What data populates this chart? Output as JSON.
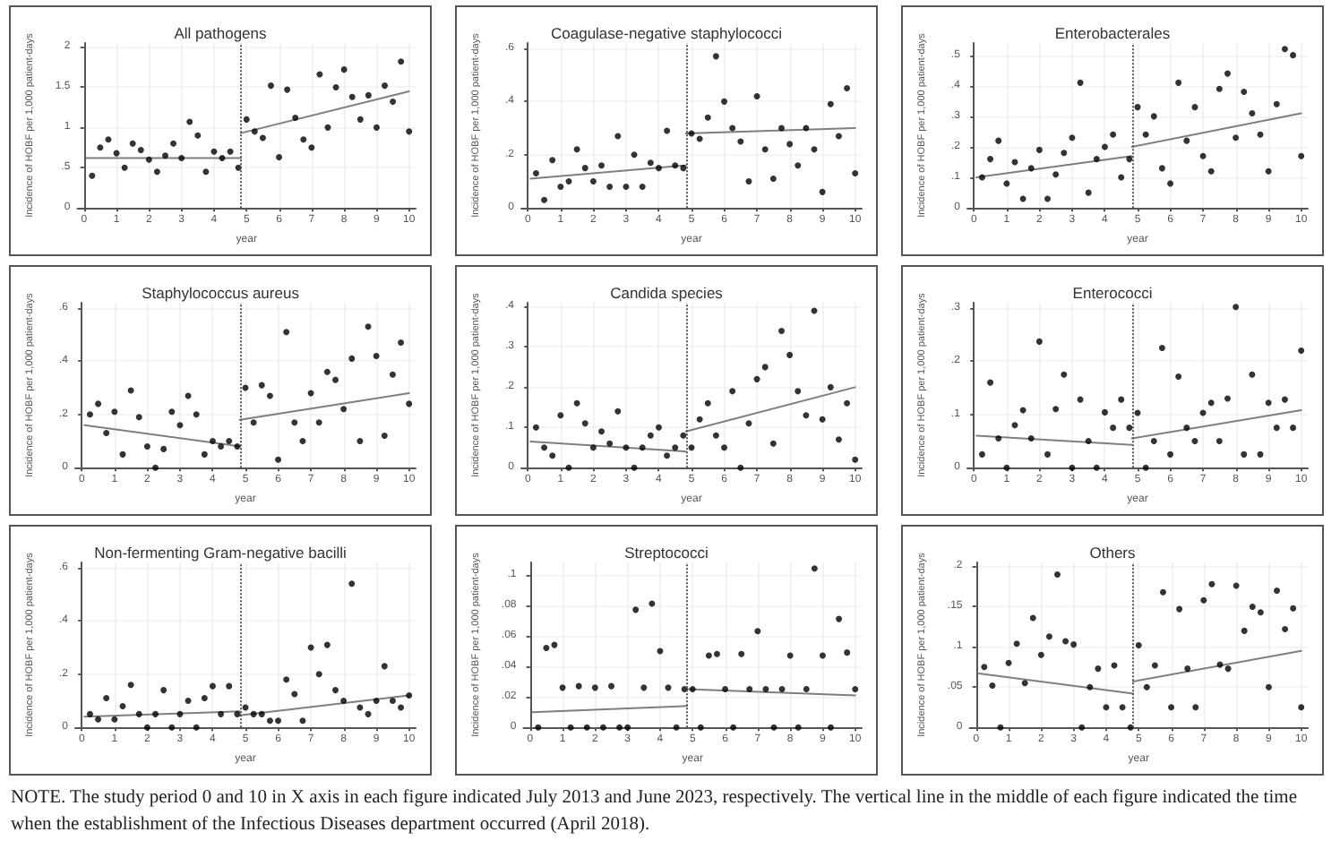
{
  "chart_data": [
    {
      "type": "scatter",
      "title": "All pathogens",
      "xlabel": "year",
      "ylabel": "Incidence of HOBF per 1,000 patient-days",
      "xlim": [
        -0.2,
        10.2
      ],
      "xticks": [
        0,
        1,
        2,
        3,
        4,
        5,
        6,
        7,
        8,
        9,
        10
      ],
      "ylim": [
        0,
        2.05
      ],
      "yticks": [
        0,
        {
          "value": 0.5,
          "label": ".5"
        },
        1,
        1.5,
        2
      ],
      "grid": true,
      "x": [
        0.25,
        0.5,
        0.75,
        1,
        1.25,
        1.5,
        1.75,
        2,
        2.25,
        2.5,
        2.75,
        3,
        3.25,
        3.5,
        3.75,
        4,
        4.25,
        4.5,
        4.75,
        5,
        5.25,
        5.5,
        5.75,
        6,
        6.25,
        6.5,
        6.75,
        7,
        7.25,
        7.5,
        7.75,
        8,
        8.25,
        8.5,
        8.75,
        9,
        9.25,
        9.5,
        9.75,
        10
      ],
      "series": [
        {
          "color": "#000000",
          "marker": "circle",
          "values": [
            0.4,
            0.75,
            0.85,
            0.68,
            0.5,
            0.8,
            0.72,
            0.6,
            0.45,
            0.65,
            0.8,
            0.62,
            1.07,
            0.9,
            0.45,
            0.7,
            0.62,
            0.7,
            0.5,
            1.1,
            0.95,
            0.87,
            1.52,
            0.63,
            1.47,
            1.12,
            0.85,
            0.75,
            1.66,
            1.0,
            1.5,
            1.72,
            1.38,
            1.1,
            1.4,
            1.0,
            1.52,
            1.32,
            1.82,
            0.95
          ]
        },
        {
          "type": "line",
          "color": "#7f7f7f",
          "x": [
            0.08,
            4.83
          ],
          "values": [
            0.62,
            0.62
          ]
        },
        {
          "type": "line",
          "color": "#7f7f7f",
          "x": [
            4.83,
            10
          ],
          "values": [
            0.93,
            1.45
          ]
        }
      ],
      "ref_lines": [
        {
          "axis": "x",
          "value": 4.83,
          "color": "#555555",
          "line_style": "dotted"
        }
      ],
      "annotations": [
        "NOTE. The study period 0 and 10 in X axis in each figure indicated July 2013 and June 2023, respectively. The vertical line in the middle of each figure indicated the time when the establishment of the Infectious Diseases department occurred (April 2018)."
      ]
    },
    {
      "type": "scatter",
      "title": "Coagulase-negative staphylococci",
      "xlabel": "year",
      "ylabel": "Incidence of HOBF per 1,000 patient-days",
      "xlim": [
        -0.2,
        10.2
      ],
      "xticks": [
        0,
        1,
        2,
        3,
        4,
        5,
        6,
        7,
        8,
        9,
        10
      ],
      "ylim": [
        0,
        0.62
      ],
      "yticks": [
        0,
        {
          "value": 0.2,
          "label": ".2"
        },
        {
          "value": 0.4,
          "label": ".4"
        },
        {
          "value": 0.6,
          "label": ".6"
        }
      ],
      "grid": true,
      "x": [
        0.25,
        0.5,
        0.75,
        1,
        1.25,
        1.5,
        1.75,
        2,
        2.25,
        2.5,
        2.75,
        3,
        3.25,
        3.5,
        3.75,
        4,
        4.25,
        4.5,
        4.75,
        5,
        5.25,
        5.5,
        5.75,
        6,
        6.25,
        6.5,
        6.75,
        7,
        7.25,
        7.5,
        7.75,
        8,
        8.25,
        8.5,
        8.75,
        9,
        9.25,
        9.5,
        9.75,
        10
      ],
      "series": [
        {
          "color": "#000000",
          "marker": "circle",
          "values": [
            0.13,
            0.03,
            0.18,
            0.08,
            0.1,
            0.22,
            0.15,
            0.1,
            0.16,
            0.08,
            0.27,
            0.08,
            0.2,
            0.08,
            0.17,
            0.15,
            0.29,
            0.16,
            0.15,
            0.28,
            0.26,
            0.34,
            0.57,
            0.4,
            0.3,
            0.25,
            0.1,
            0.42,
            0.22,
            0.11,
            0.3,
            0.24,
            0.16,
            0.3,
            0.22,
            0.06,
            0.39,
            0.27,
            0.45,
            0.13
          ]
        },
        {
          "type": "line",
          "color": "#7f7f7f",
          "x": [
            0.08,
            4.83
          ],
          "values": [
            0.11,
            0.16
          ]
        },
        {
          "type": "line",
          "color": "#7f7f7f",
          "x": [
            4.83,
            10
          ],
          "values": [
            0.28,
            0.3
          ]
        }
      ],
      "ref_lines": [
        {
          "axis": "x",
          "value": 4.83,
          "color": "#555555",
          "line_style": "dotted"
        }
      ]
    },
    {
      "type": "scatter",
      "title": "Enterobacterales",
      "xlabel": "year",
      "ylabel": "Incidence of HOBF per 1,000 patient-days",
      "xlim": [
        -0.2,
        10.2
      ],
      "xticks": [
        0,
        1,
        2,
        3,
        4,
        5,
        6,
        7,
        8,
        9,
        10
      ],
      "ylim": [
        0,
        0.54
      ],
      "yticks": [
        0,
        {
          "value": 0.1,
          "label": ".1"
        },
        {
          "value": 0.2,
          "label": ".2"
        },
        {
          "value": 0.3,
          "label": ".3"
        },
        {
          "value": 0.4,
          "label": ".4"
        },
        {
          "value": 0.5,
          "label": ".5"
        }
      ],
      "grid": true,
      "x": [
        0.25,
        0.5,
        0.75,
        1,
        1.25,
        1.5,
        1.75,
        2,
        2.25,
        2.5,
        2.75,
        3,
        3.25,
        3.5,
        3.75,
        4,
        4.25,
        4.5,
        4.75,
        5,
        5.25,
        5.5,
        5.75,
        6,
        6.25,
        6.5,
        6.75,
        7,
        7.25,
        7.5,
        7.75,
        8,
        8.25,
        8.5,
        8.75,
        9,
        9.25,
        9.5,
        9.75,
        10
      ],
      "series": [
        {
          "color": "#000000",
          "marker": "circle",
          "values": [
            0.1,
            0.16,
            0.22,
            0.08,
            0.15,
            0.03,
            0.13,
            0.19,
            0.03,
            0.11,
            0.18,
            0.23,
            0.41,
            0.05,
            0.16,
            0.2,
            0.24,
            0.1,
            0.16,
            0.33,
            0.24,
            0.3,
            0.13,
            0.08,
            0.41,
            0.22,
            0.33,
            0.17,
            0.12,
            0.39,
            0.44,
            0.23,
            0.38,
            0.31,
            0.24,
            0.12,
            0.34,
            0.52,
            0.5,
            0.17
          ]
        },
        {
          "type": "line",
          "color": "#7f7f7f",
          "x": [
            0.08,
            4.83
          ],
          "values": [
            0.1,
            0.17
          ]
        },
        {
          "type": "line",
          "color": "#7f7f7f",
          "x": [
            4.83,
            10
          ],
          "values": [
            0.2,
            0.31
          ]
        }
      ],
      "ref_lines": [
        {
          "axis": "x",
          "value": 4.83,
          "color": "#555555",
          "line_style": "dotted"
        }
      ]
    },
    {
      "type": "scatter",
      "title": "Staphylococcus aureus",
      "xlabel": "year",
      "ylabel": "Incidence of HOBF per 1,000 patient-days",
      "xlim": [
        -0.2,
        10.2
      ],
      "xticks": [
        0,
        1,
        2,
        3,
        4,
        5,
        6,
        7,
        8,
        9,
        10
      ],
      "ylim": [
        0,
        0.62
      ],
      "yticks": [
        0,
        {
          "value": 0.2,
          "label": ".2"
        },
        {
          "value": 0.4,
          "label": ".4"
        },
        {
          "value": 0.6,
          "label": ".6"
        }
      ],
      "grid": true,
      "x": [
        0.25,
        0.5,
        0.75,
        1,
        1.25,
        1.5,
        1.75,
        2,
        2.25,
        2.5,
        2.75,
        3,
        3.25,
        3.5,
        3.75,
        4,
        4.25,
        4.5,
        4.75,
        5,
        5.25,
        5.5,
        5.75,
        6,
        6.25,
        6.5,
        6.75,
        7,
        7.25,
        7.5,
        7.75,
        8,
        8.25,
        8.5,
        8.75,
        9,
        9.25,
        9.5,
        9.75,
        10
      ],
      "series": [
        {
          "color": "#000000",
          "marker": "circle",
          "values": [
            0.2,
            0.24,
            0.13,
            0.21,
            0.05,
            0.29,
            0.19,
            0.08,
            0,
            0.07,
            0.21,
            0.16,
            0.27,
            0.2,
            0.05,
            0.1,
            0.08,
            0.1,
            0.08,
            0.3,
            0.17,
            0.31,
            0.27,
            0.03,
            0.51,
            0.17,
            0.1,
            0.28,
            0.17,
            0.36,
            0.33,
            0.22,
            0.41,
            0.1,
            0.53,
            0.42,
            0.12,
            0.35,
            0.47,
            0.24
          ]
        },
        {
          "type": "line",
          "color": "#7f7f7f",
          "x": [
            0.08,
            4.83
          ],
          "values": [
            0.16,
            0.08
          ]
        },
        {
          "type": "line",
          "color": "#7f7f7f",
          "x": [
            4.83,
            10
          ],
          "values": [
            0.18,
            0.28
          ]
        }
      ],
      "ref_lines": [
        {
          "axis": "x",
          "value": 4.83,
          "color": "#555555",
          "line_style": "dotted"
        }
      ]
    },
    {
      "type": "scatter",
      "title": "Candida species",
      "xlabel": "year",
      "ylabel": "Incidence of HOBF per 1,000 patient-days",
      "xlim": [
        -0.2,
        10.2
      ],
      "xticks": [
        0,
        1,
        2,
        3,
        4,
        5,
        6,
        7,
        8,
        9,
        10
      ],
      "ylim": [
        0,
        0.41
      ],
      "yticks": [
        0,
        {
          "value": 0.1,
          "label": ".1"
        },
        {
          "value": 0.2,
          "label": ".2"
        },
        {
          "value": 0.3,
          "label": ".3"
        },
        {
          "value": 0.4,
          "label": ".4"
        }
      ],
      "grid": true,
      "x": [
        0.25,
        0.5,
        0.75,
        1,
        1.25,
        1.5,
        1.75,
        2,
        2.25,
        2.5,
        2.75,
        3,
        3.25,
        3.5,
        3.75,
        4,
        4.25,
        4.5,
        4.75,
        5,
        5.25,
        5.5,
        5.75,
        6,
        6.25,
        6.5,
        6.75,
        7,
        7.25,
        7.5,
        7.75,
        8,
        8.25,
        8.5,
        8.75,
        9,
        9.25,
        9.5,
        9.75,
        10
      ],
      "series": [
        {
          "color": "#000000",
          "marker": "circle",
          "values": [
            0.1,
            0.05,
            0.03,
            0.13,
            0,
            0.16,
            0.11,
            0.05,
            0.09,
            0.06,
            0.14,
            0.05,
            0,
            0.05,
            0.08,
            0.1,
            0.03,
            0.05,
            0.08,
            0.05,
            0.12,
            0.16,
            0.08,
            0.05,
            0.19,
            0,
            0.11,
            0.22,
            0.25,
            0.06,
            0.34,
            0.28,
            0.19,
            0.13,
            0.39,
            0.12,
            0.2,
            0.07,
            0.16,
            0.02
          ]
        },
        {
          "type": "line",
          "color": "#7f7f7f",
          "x": [
            0.08,
            4.83
          ],
          "values": [
            0.065,
            0.04
          ]
        },
        {
          "type": "line",
          "color": "#7f7f7f",
          "x": [
            4.83,
            10
          ],
          "values": [
            0.09,
            0.2
          ]
        }
      ],
      "ref_lines": [
        {
          "axis": "x",
          "value": 4.83,
          "color": "#555555",
          "line_style": "dotted"
        }
      ]
    },
    {
      "type": "scatter",
      "title": "Enterococci",
      "xlabel": "year",
      "ylabel": "Incidence of HOBF per 1,000 patient-days",
      "xlim": [
        -0.2,
        10.2
      ],
      "xticks": [
        0,
        1,
        2,
        3,
        4,
        5,
        6,
        7,
        8,
        9,
        10
      ],
      "ylim": [
        0,
        0.31
      ],
      "yticks": [
        0,
        {
          "value": 0.1,
          "label": ".1"
        },
        {
          "value": 0.2,
          "label": ".2"
        },
        {
          "value": 0.3,
          "label": ".3"
        }
      ],
      "grid": true,
      "x": [
        0.25,
        0.5,
        0.75,
        1,
        1.25,
        1.5,
        1.75,
        2,
        2.25,
        2.5,
        2.75,
        3,
        3.25,
        3.5,
        3.75,
        4,
        4.25,
        4.5,
        4.75,
        5,
        5.25,
        5.5,
        5.75,
        6,
        6.25,
        6.5,
        6.75,
        7,
        7.25,
        7.5,
        7.75,
        8,
        8.25,
        8.5,
        8.75,
        9,
        9.25,
        9.5,
        9.75,
        10
      ],
      "series": [
        {
          "color": "#000000",
          "marker": "circle",
          "values": [
            0.025,
            0.16,
            0.055,
            0,
            0.08,
            0.108,
            0.055,
            0.237,
            0.025,
            0.11,
            0.175,
            0,
            0.128,
            0.05,
            0,
            0.104,
            0.075,
            0.128,
            0.075,
            0.103,
            0,
            0.05,
            0.225,
            0.025,
            0.171,
            0.075,
            0.05,
            0.103,
            0.122,
            0.05,
            0.13,
            0.302,
            0.025,
            0.175,
            0.025,
            0.122,
            0.075,
            0.128,
            0.075,
            0.22
          ]
        },
        {
          "type": "line",
          "color": "#7f7f7f",
          "x": [
            0.08,
            4.83
          ],
          "values": [
            0.06,
            0.043
          ]
        },
        {
          "type": "line",
          "color": "#7f7f7f",
          "x": [
            4.83,
            10
          ],
          "values": [
            0.055,
            0.108
          ]
        }
      ],
      "ref_lines": [
        {
          "axis": "x",
          "value": 4.83,
          "color": "#555555",
          "line_style": "dotted"
        }
      ]
    },
    {
      "type": "scatter",
      "title": "Non-fermenting Gram-negative bacilli",
      "xlabel": "year",
      "ylabel": "Incidence of HOBF per 1,000 patient-days",
      "xlim": [
        -0.2,
        10.2
      ],
      "xticks": [
        0,
        1,
        2,
        3,
        4,
        5,
        6,
        7,
        8,
        9,
        10
      ],
      "ylim": [
        0,
        0.62
      ],
      "yticks": [
        0,
        {
          "value": 0.2,
          "label": ".2"
        },
        {
          "value": 0.4,
          "label": ".4"
        },
        {
          "value": 0.6,
          "label": ".6"
        }
      ],
      "grid": true,
      "x": [
        0.25,
        0.5,
        0.75,
        1,
        1.25,
        1.5,
        1.75,
        2,
        2.25,
        2.5,
        2.75,
        3,
        3.25,
        3.5,
        3.75,
        4,
        4.25,
        4.5,
        4.75,
        5,
        5.25,
        5.5,
        5.75,
        6,
        6.25,
        6.5,
        6.75,
        7,
        7.25,
        7.5,
        7.75,
        8,
        8.25,
        8.5,
        8.75,
        9,
        9.25,
        9.5,
        9.75,
        10
      ],
      "series": [
        {
          "color": "#000000",
          "marker": "circle",
          "values": [
            0.05,
            0.03,
            0.11,
            0.03,
            0.08,
            0.16,
            0.05,
            0,
            0.05,
            0.14,
            0,
            0.05,
            0.1,
            0,
            0.11,
            0.155,
            0.05,
            0.155,
            0.05,
            0.075,
            0.05,
            0.05,
            0.025,
            0.025,
            0.18,
            0.125,
            0.025,
            0.3,
            0.2,
            0.31,
            0.14,
            0.1,
            0.54,
            0.075,
            0.05,
            0.1,
            0.23,
            0.1,
            0.075,
            0.12
          ]
        },
        {
          "type": "line",
          "color": "#7f7f7f",
          "x": [
            0.08,
            4.83
          ],
          "values": [
            0.04,
            0.06
          ]
        },
        {
          "type": "line",
          "color": "#7f7f7f",
          "x": [
            4.83,
            10
          ],
          "values": [
            0.045,
            0.12
          ]
        }
      ],
      "ref_lines": [
        {
          "axis": "x",
          "value": 4.83,
          "color": "#555555",
          "line_style": "dotted"
        }
      ]
    },
    {
      "type": "scatter",
      "title": "Streptococci",
      "xlabel": "year",
      "ylabel": "Incidence of HOBF per 1,000 patient-days",
      "xlim": [
        -0.2,
        10.2
      ],
      "xticks": [
        0,
        1,
        2,
        3,
        4,
        5,
        6,
        7,
        8,
        9,
        10
      ],
      "ylim": [
        0,
        0.108
      ],
      "yticks": [
        0,
        {
          "value": 0.02,
          "label": ".02"
        },
        {
          "value": 0.04,
          "label": ".04"
        },
        {
          "value": 0.06,
          "label": ".06"
        },
        {
          "value": 0.08,
          "label": ".08"
        },
        {
          "value": 0.1,
          "label": ".1"
        }
      ],
      "grid": true,
      "x": [
        0.25,
        0.5,
        0.75,
        1,
        1.25,
        1.5,
        1.75,
        2,
        2.25,
        2.5,
        2.75,
        3,
        3.25,
        3.5,
        3.75,
        4,
        4.25,
        4.5,
        4.75,
        5,
        5.25,
        5.5,
        5.75,
        6,
        6.25,
        6.5,
        6.75,
        7,
        7.25,
        7.5,
        7.75,
        8,
        8.25,
        8.5,
        8.75,
        9,
        9.25,
        9.5,
        9.75,
        10
      ],
      "series": [
        {
          "color": "#000000",
          "marker": "circle",
          "values": [
            0,
            0.052,
            0.054,
            0.026,
            0,
            0.027,
            0,
            0.026,
            0,
            0.027,
            0,
            0,
            0.077,
            0.026,
            0.081,
            0.05,
            0.026,
            0,
            0.025,
            0.025,
            0,
            0.047,
            0.048,
            0.025,
            0,
            0.048,
            0.025,
            0.063,
            0.025,
            0,
            0.025,
            0.047,
            0,
            0.025,
            0.104,
            0.047,
            0,
            0.071,
            0.049,
            0.025
          ]
        },
        {
          "type": "line",
          "color": "#7f7f7f",
          "x": [
            0.08,
            4.83
          ],
          "values": [
            0.01,
            0.014
          ]
        },
        {
          "type": "line",
          "color": "#7f7f7f",
          "x": [
            4.83,
            10
          ],
          "values": [
            0.025,
            0.021
          ]
        }
      ],
      "ref_lines": [
        {
          "axis": "x",
          "value": 4.83,
          "color": "#555555",
          "line_style": "dotted"
        }
      ]
    },
    {
      "type": "scatter",
      "title": "Others",
      "xlabel": "year",
      "ylabel": "Incidence of HOBF per 1,000 patient-days",
      "xlim": [
        -0.2,
        10.2
      ],
      "xticks": [
        0,
        1,
        2,
        3,
        4,
        5,
        6,
        7,
        8,
        9,
        10
      ],
      "ylim": [
        0,
        0.205
      ],
      "yticks": [
        0,
        {
          "value": 0.05,
          "label": ".05"
        },
        {
          "value": 0.1,
          "label": ".1"
        },
        {
          "value": 0.15,
          "label": ".15"
        },
        {
          "value": 0.2,
          "label": ".2"
        }
      ],
      "grid": true,
      "x": [
        0.25,
        0.5,
        0.75,
        1,
        1.25,
        1.5,
        1.75,
        2,
        2.25,
        2.5,
        2.75,
        3,
        3.25,
        3.5,
        3.75,
        4,
        4.25,
        4.5,
        4.75,
        5,
        5.25,
        5.5,
        5.75,
        6,
        6.25,
        6.5,
        6.75,
        7,
        7.25,
        7.5,
        7.75,
        8,
        8.25,
        8.5,
        8.75,
        9,
        9.25,
        9.5,
        9.75,
        10
      ],
      "series": [
        {
          "color": "#000000",
          "marker": "circle",
          "values": [
            0.075,
            0.052,
            0,
            0.08,
            0.104,
            0.055,
            0.136,
            0.09,
            0.113,
            0.19,
            0.107,
            0.103,
            0,
            0.05,
            0.073,
            0.025,
            0.077,
            0.025,
            0,
            0.102,
            0.05,
            0.077,
            0.168,
            0.025,
            0.147,
            0.073,
            0.025,
            0.158,
            0.178,
            0.078,
            0.073,
            0.176,
            0.12,
            0.15,
            0.143,
            0.05,
            0.17,
            0.122,
            0.148,
            0.025
          ]
        },
        {
          "type": "line",
          "color": "#7f7f7f",
          "x": [
            0.08,
            4.83
          ],
          "values": [
            0.067,
            0.042
          ]
        },
        {
          "type": "line",
          "color": "#7f7f7f",
          "x": [
            4.83,
            10
          ],
          "values": [
            0.057,
            0.095
          ]
        }
      ],
      "ref_lines": [
        {
          "axis": "x",
          "value": 4.83,
          "color": "#555555",
          "line_style": "dotted"
        }
      ]
    }
  ]
}
